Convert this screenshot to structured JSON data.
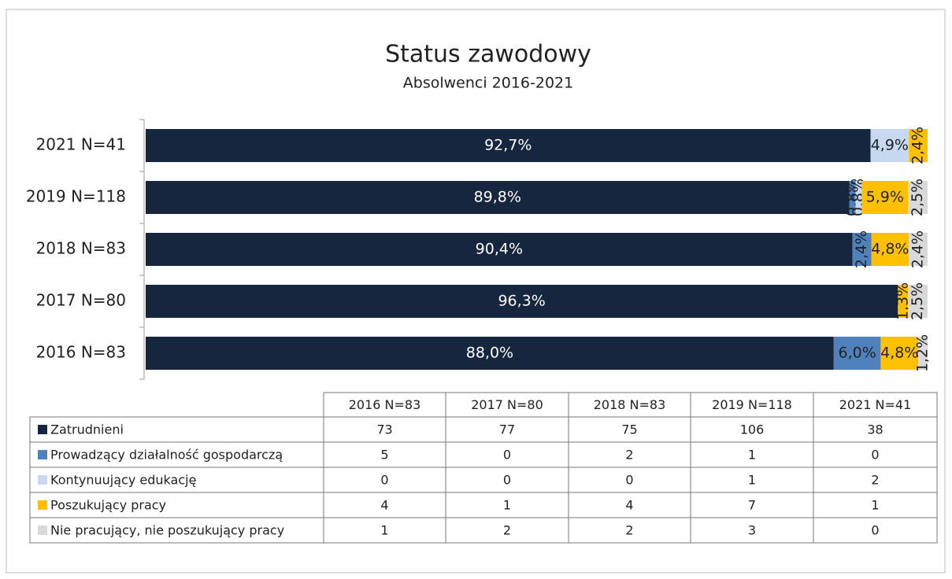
{
  "chart_data": {
    "type": "bar",
    "orientation": "horizontal",
    "stacked": true,
    "title": "Status zawodowy",
    "subtitle": "Absolwenci 2016-2021",
    "categories": [
      "2016 N=83",
      "2017 N=80",
      "2018 N=83",
      "2019 N=118",
      "2021 N=41"
    ],
    "series": [
      {
        "name": "Zatrudnieni",
        "color": "#16263f",
        "values": [
          88.0,
          96.3,
          90.4,
          89.8,
          92.7
        ],
        "value_labels": [
          "88,0%",
          "96,3%",
          "90,4%",
          "89,8%",
          "92,7%"
        ],
        "counts": [
          73,
          77,
          75,
          106,
          38
        ]
      },
      {
        "name": "Prowadzący działalność gospodarczą",
        "color": "#4f81bd",
        "values": [
          6.0,
          0,
          2.4,
          0.8,
          0
        ],
        "value_labels": [
          "6,0%",
          null,
          "2,4%",
          "0,8%",
          null
        ],
        "counts": [
          5,
          0,
          2,
          1,
          0
        ]
      },
      {
        "name": "Kontynuujący edukację",
        "color": "#c6d9f0",
        "values": [
          0,
          0,
          0,
          0.8,
          4.9
        ],
        "value_labels": [
          null,
          null,
          null,
          "0,8%",
          "4,9%"
        ],
        "counts": [
          0,
          0,
          0,
          1,
          2
        ]
      },
      {
        "name": "Poszukujący pracy",
        "color": "#ffc000",
        "values": [
          4.8,
          1.3,
          4.8,
          5.9,
          2.4
        ],
        "value_labels": [
          "4,8%",
          "1,3%",
          "4,8%",
          "5,9%",
          "2,4%"
        ],
        "counts": [
          4,
          1,
          4,
          7,
          1
        ]
      },
      {
        "name": "Nie pracujący, nie poszukujący pracy",
        "color": "#d9d9d9",
        "values": [
          1.2,
          2.5,
          2.4,
          2.5,
          0
        ],
        "value_labels": [
          "1,2%",
          "2,5%",
          "2,4%",
          "2,5%",
          null
        ],
        "counts": [
          1,
          2,
          2,
          3,
          0
        ]
      }
    ]
  }
}
